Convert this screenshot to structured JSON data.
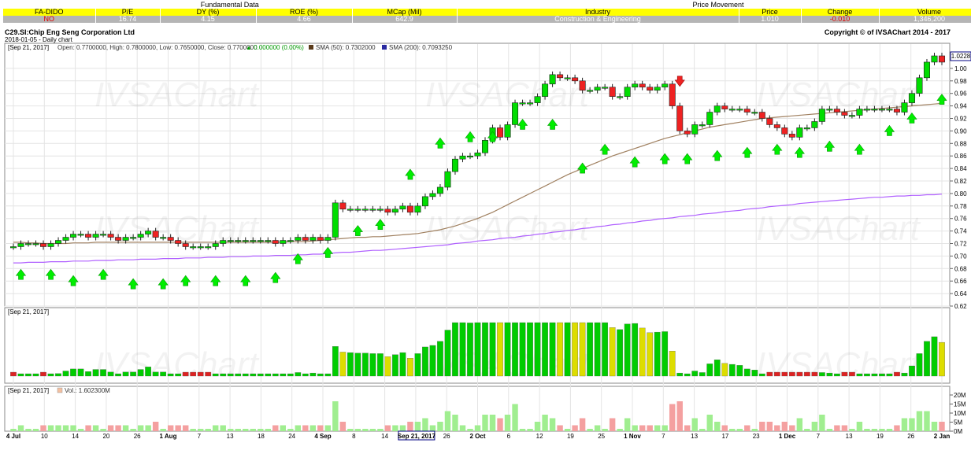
{
  "fundamentals": {
    "section_left": "Fundamental Data",
    "section_right": "Price Movement",
    "headers": [
      "FA-DIDO",
      "P/E",
      "DY (%)",
      "ROE (%)",
      "MCap (Mil)",
      "Industry",
      "Price",
      "Change",
      "Volume"
    ],
    "values": [
      "NO",
      "16.74",
      "4.15",
      "4.66",
      "642.9",
      "Construction & Engineering",
      "1.010",
      "-0.010",
      "1,346,200"
    ]
  },
  "chart_header": {
    "symbol_name": "C29.SI:Chip Eng Seng Corporation Ltd",
    "subtitle": "2018-01-05 - Daily chart",
    "copyright": "Copyright © of IVSAChart 2014 - 2017"
  },
  "price_panel": {
    "date_tag": "[Sep 21, 2017]",
    "ohlc": "Open: 0.7700000, High: 0.7800000, Low: 0.7650000, Close: 0.7700000",
    "change": "▲ 0.000000 (0.00%)",
    "sma50": "SMA (50): 0.7302000",
    "sma200": "SMA (200): 0.7093250",
    "last_price_tag": "1.0228",
    "watermark": "IVSAChart"
  },
  "osc_panel": {
    "date_tag": "[Sep 21, 2017]"
  },
  "vol_panel": {
    "date_tag": "[Sep 21, 2017]",
    "vol_label": "Vol.: 1.602300M"
  },
  "x_axis": {
    "labels": [
      "4 Jul",
      "10",
      "14",
      "20",
      "26",
      "1 Aug",
      "7",
      "13",
      "18",
      "24",
      "4 Sep",
      "8",
      "14",
      "Sep 21, 2017",
      "26",
      "2 Oct",
      "6",
      "12",
      "19",
      "25",
      "1 Nov",
      "7",
      "13",
      "17",
      "23",
      "1 Dec",
      "7",
      "13",
      "19",
      "26",
      "2 Jan"
    ],
    "highlight": "Sep 21, 2017"
  },
  "colors": {
    "up": "#00dd00",
    "down": "#ee2222",
    "sma50": "#a08060",
    "sma200": "#b060ff",
    "osc_up": "#00cc00",
    "osc_down": "#dddd00",
    "grid": "#e4e4e4",
    "header_yellow": "#ffff00"
  },
  "chart_data": {
    "type": "candlestick",
    "y_axis": {
      "ylim": [
        0.62,
        1.02
      ],
      "ticks": [
        0.62,
        0.64,
        0.66,
        0.68,
        0.7,
        0.72,
        0.74,
        0.76,
        0.78,
        0.8,
        0.82,
        0.84,
        0.86,
        0.88,
        0.9,
        0.92,
        0.94,
        0.96,
        0.98,
        1.0
      ]
    },
    "volume_axis": {
      "ticks": [
        "0M",
        "5M",
        "10M",
        "15M",
        "20M"
      ],
      "ylim": [
        0,
        20
      ]
    },
    "closes": [
      0.715,
      0.72,
      0.72,
      0.72,
      0.715,
      0.72,
      0.725,
      0.73,
      0.735,
      0.735,
      0.73,
      0.735,
      0.735,
      0.73,
      0.725,
      0.73,
      0.73,
      0.735,
      0.74,
      0.73,
      0.73,
      0.725,
      0.72,
      0.715,
      0.715,
      0.715,
      0.715,
      0.72,
      0.725,
      0.725,
      0.725,
      0.725,
      0.725,
      0.725,
      0.725,
      0.72,
      0.725,
      0.725,
      0.73,
      0.725,
      0.73,
      0.725,
      0.73,
      0.785,
      0.775,
      0.775,
      0.775,
      0.775,
      0.775,
      0.775,
      0.77,
      0.775,
      0.78,
      0.77,
      0.78,
      0.795,
      0.8,
      0.81,
      0.835,
      0.855,
      0.86,
      0.86,
      0.865,
      0.885,
      0.905,
      0.89,
      0.91,
      0.945,
      0.945,
      0.945,
      0.955,
      0.975,
      0.99,
      0.985,
      0.985,
      0.98,
      0.965,
      0.965,
      0.97,
      0.97,
      0.955,
      0.955,
      0.97,
      0.975,
      0.97,
      0.965,
      0.97,
      0.975,
      0.94,
      0.9,
      0.895,
      0.91,
      0.91,
      0.93,
      0.94,
      0.935,
      0.935,
      0.935,
      0.93,
      0.93,
      0.92,
      0.91,
      0.905,
      0.895,
      0.89,
      0.905,
      0.905,
      0.915,
      0.935,
      0.935,
      0.93,
      0.925,
      0.925,
      0.935,
      0.935,
      0.935,
      0.935,
      0.935,
      0.93,
      0.945,
      0.96,
      0.985,
      1.01,
      1.02,
      1.01
    ],
    "sma50": [
      0.722,
      0.722,
      0.721,
      0.721,
      0.72,
      0.72,
      0.72,
      0.72,
      0.721,
      0.721,
      0.721,
      0.722,
      0.722,
      0.722,
      0.722,
      0.722,
      0.722,
      0.722,
      0.722,
      0.722,
      0.722,
      0.722,
      0.722,
      0.722,
      0.722,
      0.722,
      0.722,
      0.722,
      0.722,
      0.722,
      0.722,
      0.722,
      0.722,
      0.722,
      0.722,
      0.722,
      0.722,
      0.723,
      0.723,
      0.723,
      0.724,
      0.725,
      0.726,
      0.727,
      0.728,
      0.729,
      0.73,
      0.73,
      0.731,
      0.731,
      0.732,
      0.733,
      0.734,
      0.735,
      0.736,
      0.738,
      0.74,
      0.742,
      0.745,
      0.748,
      0.752,
      0.756,
      0.76,
      0.765,
      0.77,
      0.776,
      0.782,
      0.788,
      0.794,
      0.8,
      0.806,
      0.812,
      0.818,
      0.824,
      0.83,
      0.835,
      0.84,
      0.845,
      0.85,
      0.855,
      0.86,
      0.864,
      0.868,
      0.872,
      0.876,
      0.88,
      0.884,
      0.888,
      0.891,
      0.894,
      0.897,
      0.9,
      0.903,
      0.906,
      0.908,
      0.91,
      0.912,
      0.914,
      0.916,
      0.918,
      0.92,
      0.921,
      0.922,
      0.923,
      0.924,
      0.925,
      0.926,
      0.927,
      0.928,
      0.929,
      0.93,
      0.931,
      0.932,
      0.933,
      0.934,
      0.935,
      0.936,
      0.937,
      0.938,
      0.939,
      0.94,
      0.941,
      0.942,
      0.943,
      0.944
    ],
    "sma200": [
      0.689,
      0.689,
      0.69,
      0.69,
      0.69,
      0.691,
      0.691,
      0.691,
      0.692,
      0.692,
      0.692,
      0.693,
      0.693,
      0.693,
      0.694,
      0.694,
      0.694,
      0.695,
      0.695,
      0.695,
      0.696,
      0.696,
      0.696,
      0.697,
      0.697,
      0.697,
      0.698,
      0.698,
      0.698,
      0.699,
      0.699,
      0.699,
      0.7,
      0.7,
      0.7,
      0.701,
      0.701,
      0.701,
      0.702,
      0.702,
      0.703,
      0.703,
      0.704,
      0.705,
      0.706,
      0.706,
      0.707,
      0.708,
      0.709,
      0.709,
      0.71,
      0.711,
      0.712,
      0.713,
      0.714,
      0.715,
      0.716,
      0.717,
      0.718,
      0.72,
      0.721,
      0.722,
      0.724,
      0.725,
      0.726,
      0.728,
      0.729,
      0.73,
      0.732,
      0.733,
      0.735,
      0.736,
      0.738,
      0.739,
      0.741,
      0.742,
      0.744,
      0.745,
      0.747,
      0.748,
      0.75,
      0.751,
      0.753,
      0.754,
      0.756,
      0.757,
      0.759,
      0.76,
      0.761,
      0.763,
      0.764,
      0.765,
      0.767,
      0.768,
      0.769,
      0.771,
      0.772,
      0.773,
      0.775,
      0.776,
      0.777,
      0.779,
      0.78,
      0.781,
      0.782,
      0.784,
      0.785,
      0.786,
      0.787,
      0.788,
      0.789,
      0.79,
      0.791,
      0.792,
      0.793,
      0.794,
      0.794,
      0.795,
      0.796,
      0.796,
      0.797,
      0.797,
      0.798,
      0.798,
      0.799
    ],
    "buy_arrows": [
      0.67,
      0.67,
      0.66,
      0.67,
      0.655,
      0.655,
      0.66,
      0.66,
      0.66,
      0.665,
      0.695,
      0.705,
      0.74,
      0.75,
      0.83,
      0.88,
      0.89,
      0.89,
      0.91,
      0.91,
      0.84,
      0.87,
      0.85,
      0.855,
      0.855,
      0.86,
      0.865,
      0.87,
      0.865,
      0.875,
      0.87,
      0.9,
      0.92,
      0.95
    ],
    "sell_arrows": [
      0.98
    ]
  }
}
